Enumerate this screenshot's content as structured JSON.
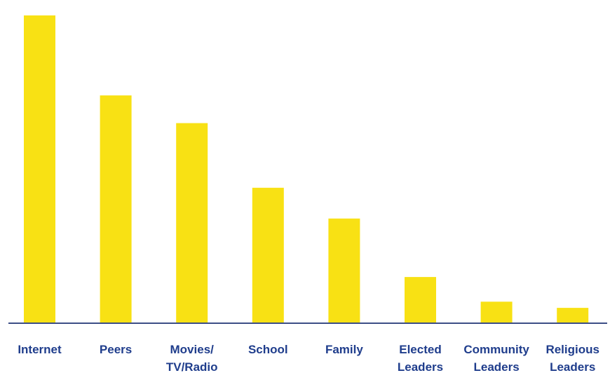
{
  "chart_data": {
    "type": "bar",
    "categories": [
      [
        "Internet"
      ],
      [
        "Peers"
      ],
      [
        "Movies/",
        "TV/Radio"
      ],
      [
        "School"
      ],
      [
        "Family"
      ],
      [
        "Elected",
        "Leaders"
      ],
      [
        "Community",
        "Leaders"
      ],
      [
        "Religious",
        "Leaders"
      ]
    ],
    "values": [
      100,
      74,
      65,
      44,
      34,
      15,
      7,
      5
    ],
    "ylim": [
      0,
      100
    ],
    "grid": false,
    "legend": "none",
    "colors": {
      "bar": "#F8E114",
      "axis": "#3C4E86",
      "label": "#1F3D8C"
    }
  }
}
